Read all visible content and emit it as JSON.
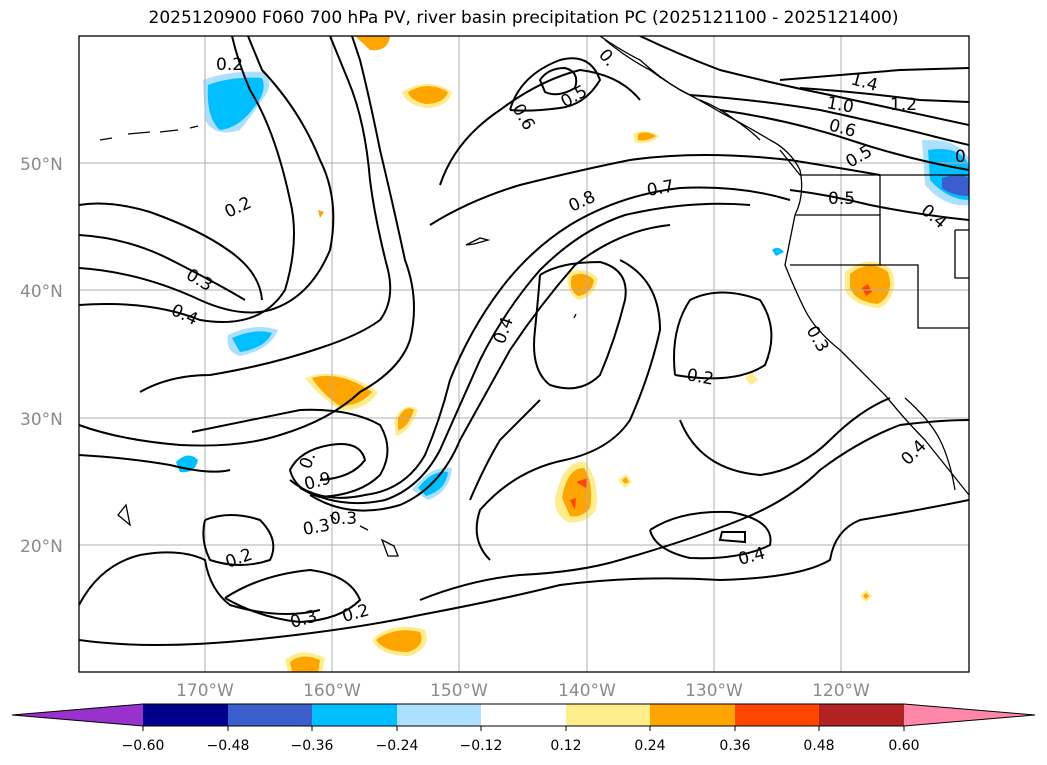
{
  "title": "2025120900 F060 700 hPa PV, river basin precipitation PC (2025121100 - 2025121400)",
  "map": {
    "lon_labels": [
      "170°W",
      "160°W",
      "150°W",
      "140°W",
      "130°W",
      "120°W"
    ],
    "lat_labels": [
      "50°N",
      "40°N",
      "30°N",
      "20°N"
    ],
    "contour_labels": [
      "0.2",
      "0.2",
      "0.3",
      "0.4",
      "0.6",
      "0.5",
      "0.",
      "0.8",
      "0.7",
      "1.4",
      "1.0",
      "1.2",
      "0.6",
      "0.5",
      "0",
      "0.5",
      "0.4",
      "0.4",
      "0.2",
      "0.3",
      "0.3",
      "0.2",
      "0.3",
      "0.2",
      "0.4",
      "0.4",
      "0.",
      "0.9",
      "0.3"
    ]
  },
  "colorbar": {
    "ticks": [
      "−0.60",
      "−0.48",
      "−0.36",
      "−0.24",
      "−0.12",
      "0.12",
      "0.24",
      "0.36",
      "0.48",
      "0.60"
    ],
    "colors": [
      "#9932CC",
      "#00008B",
      "#3A5FCD",
      "#00BFFF",
      "#ADDFFF",
      "#FFFFFF",
      "#FFEC8B",
      "#FFA500",
      "#FF4500",
      "#B22222",
      "#FF88AA"
    ]
  }
}
